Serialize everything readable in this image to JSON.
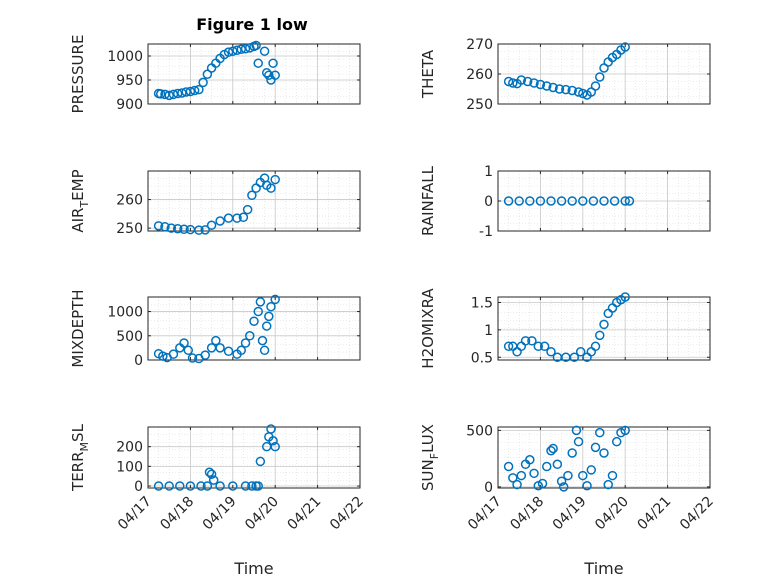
{
  "figure": {
    "title": "Figure 1 low",
    "marker_color": "#0072BD"
  },
  "chart_data": [
    {
      "type": "scatter",
      "ylabel": "PRESSURE",
      "xlabel": "",
      "title": "Figure 1 low",
      "xlim": [
        "04/17",
        "04/22"
      ],
      "ylim": [
        900,
        1025
      ],
      "yticks": [
        900,
        950,
        1000
      ],
      "ytick_labels": [
        "900",
        "950",
        "1000"
      ],
      "xticks": [
        "04/17",
        "04/18",
        "04/19",
        "04/20",
        "04/21",
        "04/22"
      ],
      "show_xtick_labels": false,
      "grid": true,
      "points": [
        [
          0.25,
          922
        ],
        [
          0.3,
          921
        ],
        [
          0.4,
          920
        ],
        [
          0.5,
          918
        ],
        [
          0.6,
          920
        ],
        [
          0.7,
          922
        ],
        [
          0.8,
          923
        ],
        [
          0.9,
          925
        ],
        [
          1.0,
          926
        ],
        [
          1.1,
          928
        ],
        [
          1.2,
          930
        ],
        [
          1.3,
          945
        ],
        [
          1.4,
          962
        ],
        [
          1.5,
          975
        ],
        [
          1.6,
          985
        ],
        [
          1.7,
          995
        ],
        [
          1.8,
          1003
        ],
        [
          1.9,
          1008
        ],
        [
          2.0,
          1010
        ],
        [
          2.1,
          1012
        ],
        [
          2.2,
          1014
        ],
        [
          2.3,
          1015
        ],
        [
          2.4,
          1017
        ],
        [
          2.5,
          1020
        ],
        [
          2.55,
          1022
        ],
        [
          2.6,
          985
        ],
        [
          2.75,
          1010
        ],
        [
          2.8,
          965
        ],
        [
          2.85,
          960
        ],
        [
          2.9,
          950
        ],
        [
          2.95,
          985
        ],
        [
          3.0,
          960
        ]
      ]
    },
    {
      "type": "scatter",
      "ylabel": "THETA",
      "xlabel": "",
      "title": "",
      "xlim": [
        "04/17",
        "04/22"
      ],
      "ylim": [
        250,
        270
      ],
      "yticks": [
        250,
        260,
        270
      ],
      "ytick_labels": [
        "250",
        "260",
        "270"
      ],
      "xticks": [
        "04/17",
        "04/18",
        "04/19",
        "04/20",
        "04/21",
        "04/22"
      ],
      "show_xtick_labels": false,
      "grid": true,
      "points": [
        [
          0.25,
          257.5
        ],
        [
          0.35,
          257.0
        ],
        [
          0.45,
          256.8
        ],
        [
          0.55,
          258.0
        ],
        [
          0.7,
          257.5
        ],
        [
          0.85,
          257.0
        ],
        [
          1.0,
          256.5
        ],
        [
          1.15,
          256.0
        ],
        [
          1.3,
          255.5
        ],
        [
          1.45,
          255.0
        ],
        [
          1.6,
          254.8
        ],
        [
          1.75,
          254.5
        ],
        [
          1.9,
          254.0
        ],
        [
          2.0,
          253.5
        ],
        [
          2.1,
          253.0
        ],
        [
          2.2,
          254.0
        ],
        [
          2.3,
          256.0
        ],
        [
          2.4,
          259.0
        ],
        [
          2.5,
          262.0
        ],
        [
          2.6,
          264.0
        ],
        [
          2.7,
          265.5
        ],
        [
          2.8,
          266.5
        ],
        [
          2.9,
          268.0
        ],
        [
          3.0,
          269.0
        ]
      ]
    },
    {
      "type": "scatter",
      "ylabel": "AIR_TEMP",
      "xlabel": "",
      "title": "",
      "xlim": [
        "04/17",
        "04/22"
      ],
      "ylim": [
        249,
        270
      ],
      "yticks": [
        250,
        260
      ],
      "ytick_labels": [
        "250",
        "260"
      ],
      "xticks": [
        "04/17",
        "04/18",
        "04/19",
        "04/20",
        "04/21",
        "04/22"
      ],
      "show_xtick_labels": false,
      "grid": true,
      "points": [
        [
          0.25,
          250.8
        ],
        [
          0.4,
          250.5
        ],
        [
          0.55,
          250.0
        ],
        [
          0.7,
          249.8
        ],
        [
          0.85,
          249.6
        ],
        [
          1.0,
          249.5
        ],
        [
          1.2,
          249.3
        ],
        [
          1.35,
          249.4
        ],
        [
          1.5,
          251.0
        ],
        [
          1.7,
          252.5
        ],
        [
          1.9,
          253.5
        ],
        [
          2.1,
          253.5
        ],
        [
          2.25,
          253.8
        ],
        [
          2.35,
          256.5
        ],
        [
          2.45,
          261.5
        ],
        [
          2.55,
          264.0
        ],
        [
          2.65,
          266.0
        ],
        [
          2.75,
          267.5
        ],
        [
          2.8,
          265.0
        ],
        [
          2.9,
          264.0
        ],
        [
          3.0,
          267.0
        ]
      ]
    },
    {
      "type": "scatter",
      "ylabel": "RAINFALL",
      "xlabel": "",
      "title": "",
      "xlim": [
        "04/17",
        "04/22"
      ],
      "ylim": [
        -1,
        1
      ],
      "yticks": [
        -1,
        0,
        1
      ],
      "ytick_labels": [
        "-1",
        "0",
        "1"
      ],
      "xticks": [
        "04/17",
        "04/18",
        "04/19",
        "04/20",
        "04/21",
        "04/22"
      ],
      "show_xtick_labels": false,
      "grid": true,
      "points": [
        [
          0.25,
          0
        ],
        [
          0.5,
          0
        ],
        [
          0.75,
          0
        ],
        [
          1.0,
          0
        ],
        [
          1.25,
          0
        ],
        [
          1.5,
          0
        ],
        [
          1.75,
          0
        ],
        [
          2.0,
          0
        ],
        [
          2.25,
          0
        ],
        [
          2.5,
          0
        ],
        [
          2.75,
          0
        ],
        [
          3.0,
          0
        ],
        [
          3.1,
          0
        ]
      ]
    },
    {
      "type": "scatter",
      "ylabel": "MIXDEPTH",
      "xlabel": "",
      "title": "",
      "xlim": [
        "04/17",
        "04/22"
      ],
      "ylim": [
        0,
        1300
      ],
      "yticks": [
        0,
        500,
        1000
      ],
      "ytick_labels": [
        "0",
        "500",
        "1000"
      ],
      "xticks": [
        "04/17",
        "04/18",
        "04/19",
        "04/20",
        "04/21",
        "04/22"
      ],
      "show_xtick_labels": false,
      "grid": true,
      "points": [
        [
          0.25,
          130
        ],
        [
          0.35,
          80
        ],
        [
          0.45,
          50
        ],
        [
          0.6,
          120
        ],
        [
          0.75,
          250
        ],
        [
          0.85,
          350
        ],
        [
          0.95,
          200
        ],
        [
          1.05,
          40
        ],
        [
          1.2,
          30
        ],
        [
          1.35,
          100
        ],
        [
          1.5,
          250
        ],
        [
          1.6,
          400
        ],
        [
          1.7,
          250
        ],
        [
          1.9,
          180
        ],
        [
          2.1,
          120
        ],
        [
          2.2,
          200
        ],
        [
          2.3,
          350
        ],
        [
          2.4,
          500
        ],
        [
          2.5,
          800
        ],
        [
          2.6,
          1000
        ],
        [
          2.65,
          1200
        ],
        [
          2.7,
          400
        ],
        [
          2.75,
          200
        ],
        [
          2.8,
          700
        ],
        [
          2.85,
          900
        ],
        [
          2.9,
          1100
        ],
        [
          3.0,
          1250
        ]
      ]
    },
    {
      "type": "scatter",
      "ylabel": "H2OMIXRA",
      "xlabel": "",
      "title": "",
      "xlim": [
        "04/17",
        "04/22"
      ],
      "ylim": [
        0.45,
        1.6
      ],
      "yticks": [
        0.5,
        1,
        1.5
      ],
      "ytick_labels": [
        "0.5",
        "1",
        "1.5"
      ],
      "xticks": [
        "04/17",
        "04/18",
        "04/19",
        "04/20",
        "04/21",
        "04/22"
      ],
      "show_xtick_labels": false,
      "grid": true,
      "points": [
        [
          0.25,
          0.7
        ],
        [
          0.35,
          0.7
        ],
        [
          0.45,
          0.6
        ],
        [
          0.55,
          0.7
        ],
        [
          0.65,
          0.8
        ],
        [
          0.8,
          0.8
        ],
        [
          0.95,
          0.7
        ],
        [
          1.1,
          0.7
        ],
        [
          1.25,
          0.6
        ],
        [
          1.4,
          0.5
        ],
        [
          1.6,
          0.5
        ],
        [
          1.8,
          0.5
        ],
        [
          1.95,
          0.6
        ],
        [
          2.1,
          0.5
        ],
        [
          2.2,
          0.6
        ],
        [
          2.3,
          0.7
        ],
        [
          2.4,
          0.9
        ],
        [
          2.5,
          1.1
        ],
        [
          2.6,
          1.3
        ],
        [
          2.7,
          1.4
        ],
        [
          2.8,
          1.5
        ],
        [
          2.9,
          1.55
        ],
        [
          3.0,
          1.6
        ]
      ]
    },
    {
      "type": "scatter",
      "ylabel": "TERR_MSL",
      "xlabel": "Time",
      "title": "",
      "xlim": [
        "04/17",
        "04/22"
      ],
      "ylim": [
        -10,
        300
      ],
      "yticks": [
        0,
        100,
        200
      ],
      "ytick_labels": [
        "0",
        "100",
        "200"
      ],
      "xticks": [
        "04/17",
        "04/18",
        "04/19",
        "04/20",
        "04/21",
        "04/22"
      ],
      "show_xtick_labels": true,
      "grid": true,
      "points": [
        [
          0.25,
          0
        ],
        [
          0.5,
          0
        ],
        [
          0.75,
          0
        ],
        [
          1.0,
          0
        ],
        [
          1.25,
          0
        ],
        [
          1.4,
          0
        ],
        [
          1.45,
          70
        ],
        [
          1.5,
          60
        ],
        [
          1.55,
          30
        ],
        [
          1.7,
          0
        ],
        [
          2.0,
          0
        ],
        [
          2.3,
          0
        ],
        [
          2.45,
          0
        ],
        [
          2.55,
          0
        ],
        [
          2.6,
          0
        ],
        [
          2.65,
          125
        ],
        [
          2.8,
          200
        ],
        [
          2.85,
          250
        ],
        [
          2.9,
          290
        ],
        [
          2.95,
          230
        ],
        [
          3.0,
          200
        ]
      ]
    },
    {
      "type": "scatter",
      "ylabel": "SUN_FLUX",
      "xlabel": "Time",
      "title": "",
      "xlim": [
        "04/17",
        "04/22"
      ],
      "ylim": [
        -10,
        530
      ],
      "yticks": [
        0,
        500
      ],
      "ytick_labels": [
        "0",
        "500"
      ],
      "xticks": [
        "04/17",
        "04/18",
        "04/19",
        "04/20",
        "04/21",
        "04/22"
      ],
      "show_xtick_labels": true,
      "grid": true,
      "points": [
        [
          0.25,
          180
        ],
        [
          0.35,
          80
        ],
        [
          0.45,
          20
        ],
        [
          0.55,
          100
        ],
        [
          0.65,
          200
        ],
        [
          0.75,
          240
        ],
        [
          0.85,
          120
        ],
        [
          0.95,
          10
        ],
        [
          1.05,
          30
        ],
        [
          1.15,
          180
        ],
        [
          1.25,
          320
        ],
        [
          1.3,
          340
        ],
        [
          1.4,
          200
        ],
        [
          1.5,
          50
        ],
        [
          1.55,
          0
        ],
        [
          1.65,
          100
        ],
        [
          1.75,
          300
        ],
        [
          1.85,
          500
        ],
        [
          1.9,
          400
        ],
        [
          2.0,
          100
        ],
        [
          2.1,
          10
        ],
        [
          2.2,
          150
        ],
        [
          2.3,
          350
        ],
        [
          2.4,
          480
        ],
        [
          2.5,
          300
        ],
        [
          2.6,
          20
        ],
        [
          2.7,
          100
        ],
        [
          2.8,
          400
        ],
        [
          2.9,
          480
        ],
        [
          3.0,
          500
        ]
      ]
    }
  ]
}
